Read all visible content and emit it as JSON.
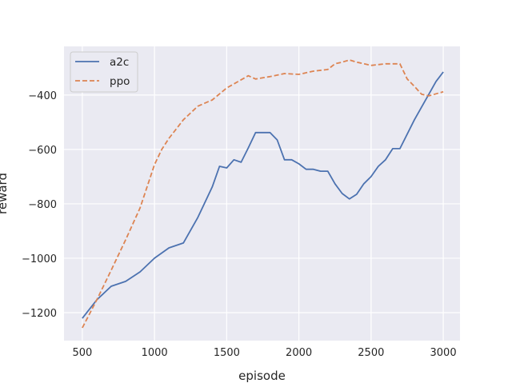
{
  "chart_data": {
    "type": "line",
    "title": "",
    "xlabel": "episode",
    "ylabel": "reward",
    "xlim": [
      373,
      3116
    ],
    "ylim": [
      -1303,
      -221
    ],
    "xticks": [
      500,
      1000,
      1500,
      2000,
      2500,
      3000
    ],
    "yticks": [
      -1200,
      -1000,
      -800,
      -600,
      -400
    ],
    "xtick_labels": [
      "500",
      "1000",
      "1500",
      "2000",
      "2500",
      "3000"
    ],
    "ytick_labels": [
      "−1200",
      "−1000",
      "−800",
      "−600",
      "−400"
    ],
    "grid": true,
    "background": "#eaeaf2",
    "legend_placement": "top-left",
    "series": [
      {
        "name": "a2c",
        "color": "#4c72b0",
        "style": "solid",
        "x": [
          500,
          600,
          700,
          800,
          900,
          1000,
          1100,
          1200,
          1300,
          1400,
          1450,
          1500,
          1550,
          1600,
          1650,
          1700,
          1800,
          1850,
          1900,
          1950,
          2000,
          2050,
          2100,
          2150,
          2200,
          2250,
          2300,
          2350,
          2400,
          2450,
          2500,
          2550,
          2600,
          2650,
          2700,
          2800,
          2900,
          2950,
          3000
        ],
        "y": [
          -1221,
          -1153,
          -1103,
          -1085,
          -1050,
          -1000,
          -962,
          -944,
          -850,
          -738,
          -662,
          -668,
          -638,
          -647,
          -594,
          -538,
          -538,
          -565,
          -638,
          -638,
          -653,
          -673,
          -673,
          -680,
          -680,
          -726,
          -762,
          -782,
          -765,
          -726,
          -700,
          -662,
          -638,
          -597,
          -597,
          -491,
          -397,
          -350,
          -315
        ]
      },
      {
        "name": "ppo",
        "color": "#dd8452",
        "style": "dashed",
        "x": [
          500,
          600,
          700,
          800,
          900,
          1000,
          1050,
          1100,
          1200,
          1300,
          1400,
          1500,
          1600,
          1650,
          1700,
          1800,
          1900,
          2000,
          2100,
          2200,
          2250,
          2300,
          2350,
          2400,
          2500,
          2600,
          2700,
          2750,
          2800,
          2850,
          2900,
          3000
        ],
        "y": [
          -1256,
          -1153,
          -1044,
          -932,
          -815,
          -656,
          -600,
          -559,
          -491,
          -441,
          -418,
          -374,
          -344,
          -329,
          -341,
          -332,
          -321,
          -324,
          -312,
          -306,
          -285,
          -279,
          -271,
          -279,
          -291,
          -285,
          -285,
          -341,
          -368,
          -397,
          -403,
          -388
        ]
      }
    ]
  }
}
